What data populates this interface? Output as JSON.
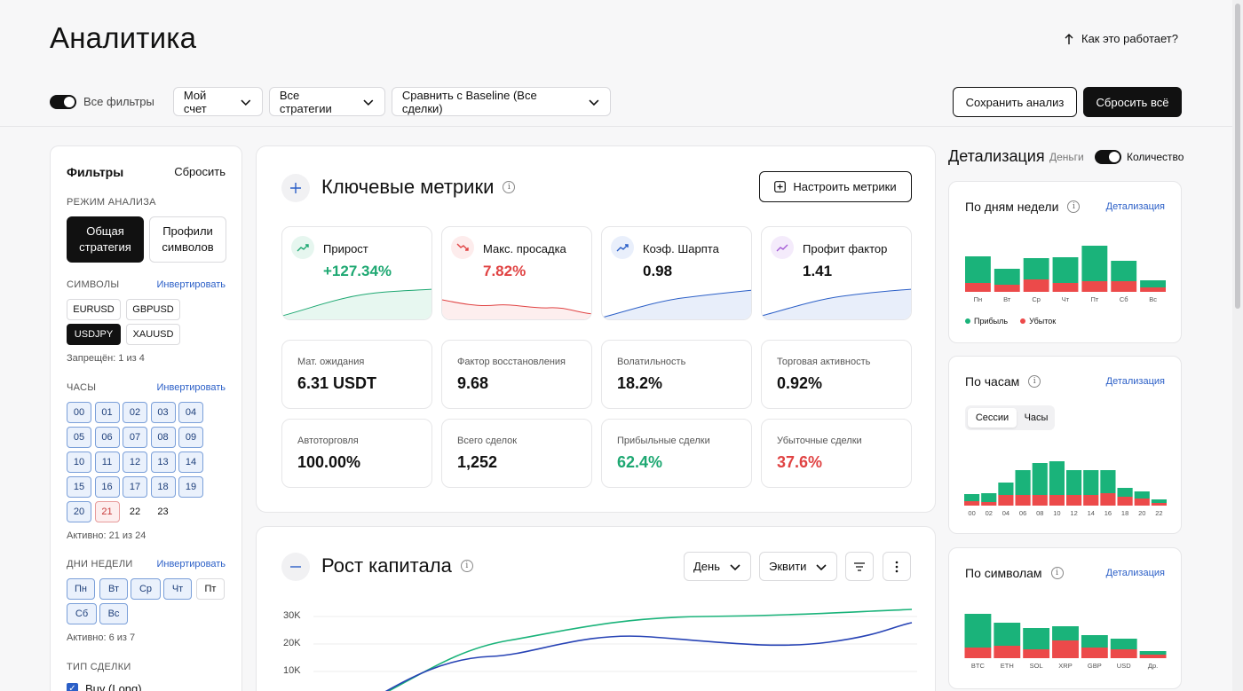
{
  "header": {
    "title": "Аналитика",
    "how_it_works": "Как это работает?"
  },
  "toolbar": {
    "all_filters": "Все фильтры",
    "account": "Мой счет",
    "strategies": "Все стратегии",
    "compare": "Сравнить с Baseline (Все сделки)",
    "save": "Сохранить анализ",
    "reset_all": "Сбросить всё"
  },
  "filters": {
    "title": "Фильтры",
    "reset": "Сбросить",
    "mode_label": "РЕЖИМ АНАЛИЗА",
    "mode_general": "Общая стратегия",
    "mode_profiles": "Профили символов",
    "symbols_label": "СИМВОЛЫ",
    "invert": "Инвертировать",
    "symbols": [
      "EURUSD",
      "GBPUSD",
      "USDJPY",
      "XAUUSD"
    ],
    "symbols_note": "Запрещён: 1 из 4",
    "hours_label": "ЧАСЫ",
    "hours": [
      "00",
      "01",
      "02",
      "03",
      "04",
      "05",
      "06",
      "07",
      "08",
      "09",
      "10",
      "11",
      "12",
      "13",
      "14",
      "15",
      "16",
      "17",
      "18",
      "19",
      "20",
      "21",
      "22",
      "23"
    ],
    "hours_note": "Активно: 21 из 24",
    "days_label": "ДНИ НЕДЕЛИ",
    "days": [
      "Пн",
      "Вт",
      "Ср",
      "Чт",
      "Пт",
      "Сб",
      "Вс"
    ],
    "days_note": "Активно: 6 из 7",
    "trade_type_label": "ТИП СДЕЛКИ",
    "trade_type_buy": "Buy (Long)"
  },
  "metrics": {
    "title": "Ключевые метрики",
    "configure": "Настроить метрики",
    "primary": [
      {
        "label": "Прирост",
        "value": "+127.34%",
        "tone": "green"
      },
      {
        "label": "Макс. просадка",
        "value": "7.82%",
        "tone": "red"
      },
      {
        "label": "Коэф. Шарпта",
        "value": "0.98",
        "tone": "blue"
      },
      {
        "label": "Профит фактор",
        "value": "1.41",
        "tone": "purple"
      }
    ],
    "secondary": [
      {
        "label": "Мат. ожидания",
        "value": "6.31 USDT"
      },
      {
        "label": "Фактор восстановления",
        "value": "9.68"
      },
      {
        "label": "Волатильность",
        "value": "18.2%"
      },
      {
        "label": "Торговая активность",
        "value": "0.92%"
      },
      {
        "label": "Автоторговля",
        "value": "100.00%"
      },
      {
        "label": "Всего сделок",
        "value": "1,252"
      },
      {
        "label": "Прибыльные сделки",
        "value": "62.4%"
      },
      {
        "label": "Убыточные сделки",
        "value": "37.6%"
      }
    ]
  },
  "capital": {
    "title": "Рост капитала",
    "period": "День",
    "mode": "Эквити",
    "yticks": [
      "30K",
      "20K",
      "10K"
    ]
  },
  "breakdown": {
    "title": "Детализация",
    "money": "Деньги",
    "count": "Количество",
    "link": "Детализация",
    "legend_profit": "Прибыль",
    "legend_loss": "Убыток",
    "by_day": {
      "title": "По дням недели",
      "labels": [
        "Пн",
        "Вт",
        "Ср",
        "Чт",
        "Пт",
        "Сб",
        "Вс"
      ],
      "profit": [
        30,
        18,
        24,
        29,
        40,
        23,
        8
      ],
      "loss": [
        10,
        8,
        14,
        10,
        12,
        12,
        5
      ]
    },
    "by_hour": {
      "title": "По часам",
      "tab_sessions": "Сессии",
      "tab_hours": "Часы",
      "labels": [
        "00",
        "02",
        "04",
        "06",
        "08",
        "10",
        "12",
        "14",
        "16",
        "18",
        "20",
        "22"
      ],
      "profit": [
        8,
        10,
        14,
        28,
        36,
        38,
        28,
        28,
        26,
        10,
        8,
        4
      ],
      "loss": [
        5,
        4,
        12,
        12,
        12,
        12,
        12,
        12,
        14,
        10,
        8,
        3
      ]
    },
    "by_symbol": {
      "title": "По символам",
      "labels": [
        "BTC",
        "ETH",
        "SOL",
        "XRP",
        "GBP",
        "USD",
        "Др."
      ],
      "profit": [
        38,
        26,
        24,
        16,
        14,
        12,
        4
      ],
      "loss": [
        12,
        14,
        10,
        20,
        12,
        10,
        4
      ]
    }
  },
  "colors": {
    "profit": "#1ab37a",
    "loss": "#ec4a4a",
    "link": "#2b5fc7",
    "dark": "#111111"
  }
}
